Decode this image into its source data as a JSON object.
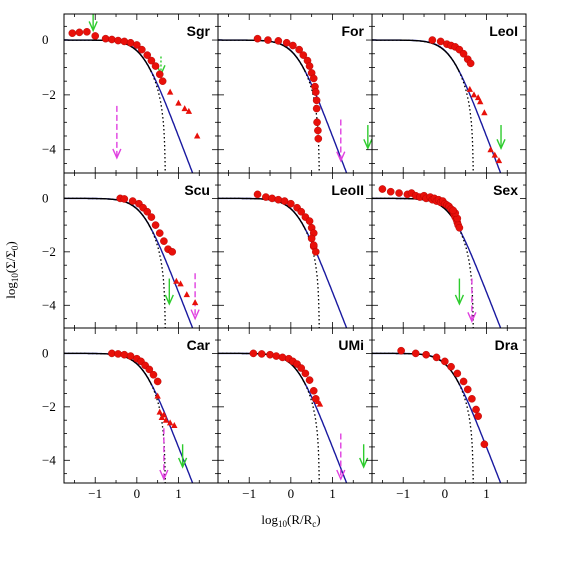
{
  "chart_data": {
    "type": "scatter",
    "layout": "3x3 grid of panels with shared axes",
    "xlabel": "log10(R/Rc)",
    "ylabel": "log10(Σ/Σ0)",
    "xlim": [
      -1.75,
      1.95
    ],
    "ylim": [
      -4.85,
      0.95
    ],
    "xticks": [
      -1,
      0,
      1
    ],
    "yticks": [
      0,
      -2,
      -4
    ],
    "model_king_color": "#000000",
    "model_plummer_color": "#1a1aa0",
    "point_color": "#e8100a",
    "arrow_color_green": "#2ecc2e",
    "arrow_color_magenta": "#e040e0",
    "panels": [
      {
        "name": "Sgr",
        "row": 0,
        "col": 0,
        "circles": [
          [
            -1.55,
            0.25
          ],
          [
            -1.38,
            0.28
          ],
          [
            -1.2,
            0.3
          ],
          [
            -1.0,
            0.15
          ],
          [
            -0.75,
            0.05
          ],
          [
            -0.6,
            0.02
          ],
          [
            -0.45,
            -0.02
          ],
          [
            -0.3,
            -0.05
          ],
          [
            -0.15,
            -0.1
          ],
          [
            0.0,
            -0.18
          ],
          [
            0.12,
            -0.35
          ],
          [
            0.25,
            -0.55
          ],
          [
            0.35,
            -0.75
          ],
          [
            0.45,
            -0.95
          ],
          [
            0.55,
            -1.25
          ],
          [
            0.62,
            -1.5
          ]
        ],
        "triangles": [
          [
            0.8,
            -1.9
          ],
          [
            1.0,
            -2.3
          ],
          [
            1.15,
            -2.5
          ],
          [
            1.25,
            -2.6
          ],
          [
            1.45,
            -3.5
          ]
        ],
        "arrows": [
          {
            "x": -1.05,
            "color": "green",
            "style": "solid",
            "y_top": 0.95,
            "y_bottom": 0.35
          },
          {
            "x": 0.58,
            "color": "green",
            "style": "dotted",
            "y_top": -0.6,
            "y_bottom": -1.25
          },
          {
            "x": -0.48,
            "color": "magenta",
            "style": "dashed",
            "y_top": -2.4,
            "y_bottom": -4.3
          }
        ]
      },
      {
        "name": "For",
        "row": 0,
        "col": 1,
        "circles": [
          [
            -0.8,
            0.05
          ],
          [
            -0.55,
            0.0
          ],
          [
            -0.3,
            -0.03
          ],
          [
            -0.1,
            -0.1
          ],
          [
            0.05,
            -0.2
          ],
          [
            0.2,
            -0.35
          ],
          [
            0.3,
            -0.55
          ],
          [
            0.4,
            -0.75
          ],
          [
            0.45,
            -0.95
          ],
          [
            0.5,
            -1.2
          ],
          [
            0.55,
            -1.4
          ],
          [
            0.58,
            -1.7
          ],
          [
            0.6,
            -1.9
          ],
          [
            0.62,
            -2.2
          ],
          [
            0.62,
            -2.5
          ],
          [
            0.63,
            -3.0
          ],
          [
            0.65,
            -3.3
          ],
          [
            0.66,
            -3.6
          ]
        ],
        "triangles": [],
        "arrows": [
          {
            "x": 1.2,
            "color": "magenta",
            "style": "dashed",
            "y_top": -2.9,
            "y_bottom": -4.4
          },
          {
            "x": 1.85,
            "color": "green",
            "style": "solid",
            "y_top": -3.1,
            "y_bottom": -3.95
          }
        ]
      },
      {
        "name": "LeoI",
        "row": 0,
        "col": 2,
        "circles": [
          [
            -0.3,
            0.0
          ],
          [
            -0.1,
            -0.05
          ],
          [
            0.05,
            -0.15
          ],
          [
            0.15,
            -0.2
          ],
          [
            0.25,
            -0.25
          ],
          [
            0.35,
            -0.35
          ],
          [
            0.45,
            -0.5
          ],
          [
            0.55,
            -0.7
          ],
          [
            0.62,
            -0.85
          ]
        ],
        "triangles": [
          [
            0.6,
            -1.8
          ],
          [
            0.7,
            -2.0
          ],
          [
            0.8,
            -2.1
          ],
          [
            0.85,
            -2.25
          ],
          [
            0.95,
            -2.65
          ],
          [
            1.1,
            -4.0
          ],
          [
            1.2,
            -4.2
          ],
          [
            1.3,
            -4.4
          ]
        ],
        "arrows": [
          {
            "x": 1.35,
            "color": "green",
            "style": "solid",
            "y_top": -3.1,
            "y_bottom": -3.95
          }
        ]
      },
      {
        "name": "Scu",
        "row": 1,
        "col": 0,
        "circles": [
          [
            -0.4,
            0.0
          ],
          [
            -0.3,
            -0.02
          ],
          [
            -0.1,
            -0.1
          ],
          [
            0.05,
            -0.2
          ],
          [
            0.15,
            -0.35
          ],
          [
            0.25,
            -0.5
          ],
          [
            0.35,
            -0.7
          ],
          [
            0.45,
            -1.0
          ],
          [
            0.55,
            -1.3
          ],
          [
            0.65,
            -1.6
          ],
          [
            0.75,
            -1.9
          ],
          [
            0.85,
            -2.0
          ]
        ],
        "triangles": [
          [
            0.95,
            -3.1
          ],
          [
            1.05,
            -3.2
          ],
          [
            1.2,
            -3.6
          ],
          [
            1.4,
            -3.9
          ]
        ],
        "arrows": [
          {
            "x": 0.78,
            "color": "green",
            "style": "solid",
            "y_top": -3.0,
            "y_bottom": -3.95
          },
          {
            "x": 1.4,
            "color": "magenta",
            "style": "dashed",
            "y_top": -2.8,
            "y_bottom": -4.5
          }
        ]
      },
      {
        "name": "LeoII",
        "row": 1,
        "col": 1,
        "circles": [
          [
            -0.8,
            0.15
          ],
          [
            -0.6,
            0.05
          ],
          [
            -0.45,
            0.0
          ],
          [
            -0.3,
            -0.05
          ],
          [
            -0.15,
            -0.1
          ],
          [
            0.0,
            -0.2
          ],
          [
            0.15,
            -0.35
          ],
          [
            0.25,
            -0.5
          ],
          [
            0.35,
            -0.7
          ],
          [
            0.45,
            -0.85
          ],
          [
            0.5,
            -1.1
          ],
          [
            0.55,
            -1.3
          ],
          [
            0.5,
            -1.5
          ],
          [
            0.55,
            -1.8
          ],
          [
            0.6,
            -2.0
          ],
          [
            0.55,
            -1.75
          ]
        ],
        "triangles": [],
        "arrows": []
      },
      {
        "name": "Sex",
        "row": 1,
        "col": 2,
        "circles": [
          [
            -1.5,
            0.35
          ],
          [
            -1.3,
            0.25
          ],
          [
            -1.1,
            0.2
          ],
          [
            -0.9,
            0.15
          ],
          [
            -0.8,
            0.2
          ],
          [
            -0.7,
            0.1
          ],
          [
            -0.6,
            0.05
          ],
          [
            -0.5,
            0.1
          ],
          [
            -0.45,
            0.0
          ],
          [
            -0.35,
            0.05
          ],
          [
            -0.3,
            -0.05
          ],
          [
            -0.25,
            0.0
          ],
          [
            -0.2,
            -0.1
          ],
          [
            -0.15,
            -0.05
          ],
          [
            -0.1,
            -0.15
          ],
          [
            -0.05,
            -0.1
          ],
          [
            0.0,
            -0.2
          ],
          [
            0.05,
            -0.25
          ],
          [
            0.1,
            -0.3
          ],
          [
            0.15,
            -0.4
          ],
          [
            0.2,
            -0.5
          ],
          [
            0.22,
            -0.6
          ],
          [
            0.25,
            -0.7
          ],
          [
            0.28,
            -0.8
          ],
          [
            0.3,
            -0.9
          ],
          [
            0.32,
            -1.0
          ],
          [
            0.35,
            -1.1
          ],
          [
            0.3,
            -0.75
          ],
          [
            0.25,
            -0.55
          ],
          [
            0.2,
            -0.45
          ]
        ],
        "triangles": [],
        "arrows": [
          {
            "x": 0.35,
            "color": "green",
            "style": "solid",
            "y_top": -3.0,
            "y_bottom": -3.95
          },
          {
            "x": 0.65,
            "color": "magenta",
            "style": "dashed",
            "y_top": -3.0,
            "y_bottom": -4.6
          }
        ]
      },
      {
        "name": "Car",
        "row": 2,
        "col": 0,
        "circles": [
          [
            -0.6,
            0.0
          ],
          [
            -0.45,
            -0.02
          ],
          [
            -0.3,
            -0.05
          ],
          [
            -0.15,
            -0.1
          ],
          [
            0.0,
            -0.2
          ],
          [
            0.1,
            -0.3
          ],
          [
            0.2,
            -0.45
          ],
          [
            0.3,
            -0.6
          ],
          [
            0.4,
            -0.8
          ],
          [
            0.5,
            -1.05
          ]
        ],
        "triangles": [
          [
            0.5,
            -1.6
          ],
          [
            0.55,
            -2.2
          ],
          [
            0.6,
            -2.4
          ],
          [
            0.65,
            -2.3
          ],
          [
            0.7,
            -2.5
          ],
          [
            0.8,
            -2.6
          ],
          [
            0.9,
            -2.7
          ]
        ],
        "arrows": [
          {
            "x": 0.65,
            "color": "magenta",
            "style": "dashed",
            "y_top": -2.8,
            "y_bottom": -4.7
          },
          {
            "x": 1.1,
            "color": "green",
            "style": "solid",
            "y_top": -3.4,
            "y_bottom": -4.25
          }
        ]
      },
      {
        "name": "UMi",
        "row": 2,
        "col": 1,
        "circles": [
          [
            -0.9,
            0.0
          ],
          [
            -0.7,
            -0.02
          ],
          [
            -0.5,
            -0.05
          ],
          [
            -0.35,
            -0.1
          ],
          [
            -0.2,
            -0.15
          ],
          [
            -0.05,
            -0.2
          ],
          [
            0.05,
            -0.3
          ],
          [
            0.15,
            -0.4
          ],
          [
            0.25,
            -0.55
          ],
          [
            0.35,
            -0.75
          ],
          [
            0.45,
            -1.0
          ],
          [
            0.55,
            -1.4
          ],
          [
            0.6,
            -1.7
          ]
        ],
        "triangles": [
          [
            0.65,
            -1.8
          ],
          [
            0.7,
            -1.9
          ]
        ],
        "arrows": [
          {
            "x": 1.2,
            "color": "magenta",
            "style": "dashed",
            "y_top": -3.0,
            "y_bottom": -4.7
          },
          {
            "x": 1.75,
            "color": "green",
            "style": "solid",
            "y_top": -3.4,
            "y_bottom": -4.25
          }
        ]
      },
      {
        "name": "Dra",
        "row": 2,
        "col": 2,
        "circles": [
          [
            -1.05,
            0.1
          ],
          [
            -0.7,
            0.0
          ],
          [
            -0.45,
            -0.05
          ],
          [
            -0.2,
            -0.15
          ],
          [
            0.0,
            -0.3
          ],
          [
            0.15,
            -0.5
          ],
          [
            0.3,
            -0.75
          ],
          [
            0.45,
            -1.05
          ],
          [
            0.55,
            -1.35
          ],
          [
            0.65,
            -1.7
          ],
          [
            0.75,
            -2.1
          ],
          [
            0.8,
            -2.35
          ],
          [
            0.95,
            -3.4
          ]
        ],
        "triangles": [],
        "arrows": []
      }
    ]
  }
}
